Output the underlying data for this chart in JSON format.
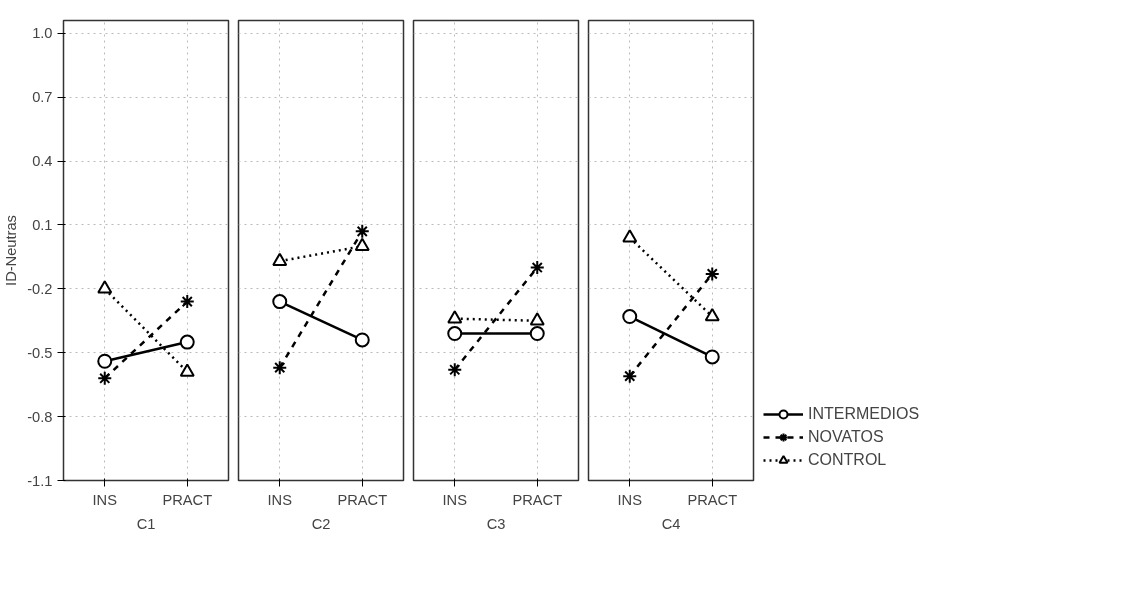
{
  "chart_data": [
    {
      "type": "line",
      "categories": [
        "INS",
        "PRACT"
      ],
      "xlabel": "C1",
      "ylabel": "ID-Neutras",
      "ylim": [
        -1.1,
        1.06
      ],
      "yticks": [
        -1.1,
        -0.8,
        -0.5,
        -0.2,
        0.1,
        0.4,
        0.7,
        {
          "value": 1,
          "label": "1.0"
        }
      ],
      "grid": true,
      "legend": false,
      "series": [
        {
          "color": "#000000",
          "marker": "circle",
          "line_style": "solid",
          "values": [
            -0.54,
            -0.45
          ]
        },
        {
          "color": "#000000",
          "marker": "cross",
          "line_style": "dashed",
          "values": [
            -0.62,
            -0.26
          ]
        },
        {
          "color": "#000000",
          "marker": "triangle",
          "line_style": "dotted",
          "values": [
            -0.2,
            -0.59
          ]
        }
      ]
    },
    {
      "type": "line",
      "categories": [
        "INS",
        "PRACT"
      ],
      "xlabel": "C2",
      "ylim": [
        -1.1,
        1.06
      ],
      "yticks": [
        -1.1,
        -0.8,
        -0.5,
        -0.2,
        0.1,
        0.4,
        0.7,
        1.0
      ],
      "grid": true,
      "legend": false,
      "tick_labels": "x",
      "series": [
        {
          "color": "#000000",
          "marker": "circle",
          "line_style": "solid",
          "values": [
            -0.26,
            -0.44
          ]
        },
        {
          "color": "#000000",
          "marker": "cross",
          "line_style": "dashed",
          "values": [
            -0.57,
            0.07
          ]
        },
        {
          "color": "#000000",
          "marker": "triangle",
          "line_style": "dotted",
          "values": [
            -0.07,
            0.0
          ]
        }
      ]
    },
    {
      "type": "line",
      "categories": [
        "INS",
        "PRACT"
      ],
      "xlabel": "C3",
      "ylim": [
        -1.1,
        1.06
      ],
      "yticks": [
        -1.1,
        -0.8,
        -0.5,
        -0.2,
        0.1,
        0.4,
        0.7,
        1.0
      ],
      "grid": true,
      "legend": false,
      "tick_labels": "x",
      "series": [
        {
          "color": "#000000",
          "marker": "circle",
          "line_style": "solid",
          "values": [
            -0.41,
            -0.41
          ]
        },
        {
          "color": "#000000",
          "marker": "cross",
          "line_style": "dashed",
          "values": [
            -0.58,
            -0.1
          ]
        },
        {
          "color": "#000000",
          "marker": "triangle",
          "line_style": "dotted",
          "values": [
            -0.34,
            -0.35
          ]
        }
      ]
    },
    {
      "type": "line",
      "categories": [
        "INS",
        "PRACT"
      ],
      "xlabel": "C4",
      "ylim": [
        -1.1,
        1.06
      ],
      "yticks": [
        -1.1,
        -0.8,
        -0.5,
        -0.2,
        0.1,
        0.4,
        0.7,
        1.0
      ],
      "grid": true,
      "legend": "bottom right",
      "tick_labels": "x",
      "series": [
        {
          "name": "INTERMEDIOS",
          "color": "#000000",
          "marker": "circle",
          "line_style": "solid",
          "values": [
            -0.33,
            -0.52
          ]
        },
        {
          "name": "NOVATOS",
          "color": "#000000",
          "marker": "cross",
          "line_style": "dashed",
          "values": [
            -0.61,
            -0.13
          ]
        },
        {
          "name": "CONTROL",
          "color": "#000000",
          "marker": "triangle",
          "line_style": "dotted",
          "values": [
            0.04,
            -0.33
          ]
        }
      ]
    }
  ]
}
